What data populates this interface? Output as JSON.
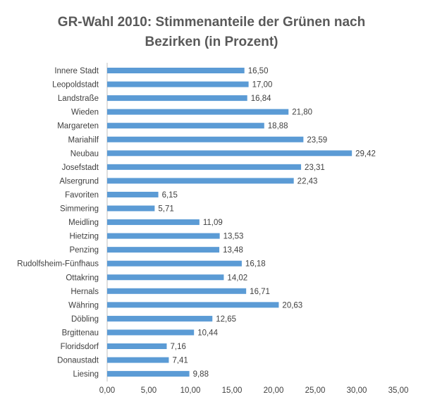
{
  "chart_data": {
    "type": "bar",
    "orientation": "horizontal",
    "title_line1": "GR-Wahl 2010: Stimmenanteile der Grünen nach",
    "title_line2": "Bezirken (in Prozent)",
    "categories": [
      "Innere Stadt",
      "Leopoldstadt",
      "Landstraße",
      "Wieden",
      "Margareten",
      "Mariahilf",
      "Neubau",
      "Josefstadt",
      "Alsergrund",
      "Favoriten",
      "Simmering",
      "Meidling",
      "Hietzing",
      "Penzing",
      "Rudolfsheim-Fünfhaus",
      "Ottakring",
      "Hernals",
      "Währing",
      "Döbling",
      "Brgittenau",
      "Floridsdorf",
      "Donaustadt",
      "Liesing"
    ],
    "values": [
      16.5,
      17.0,
      16.84,
      21.8,
      18.88,
      23.59,
      29.42,
      23.31,
      22.43,
      6.15,
      5.71,
      11.09,
      13.53,
      13.48,
      16.18,
      14.02,
      16.71,
      20.63,
      12.65,
      10.44,
      7.16,
      7.41,
      9.88
    ],
    "value_labels": [
      "16,50",
      "17,00",
      "16,84",
      "21,80",
      "18,88",
      "23,59",
      "29,42",
      "23,31",
      "22,43",
      "6,15",
      "5,71",
      "11,09",
      "13,53",
      "13,48",
      "16,18",
      "14,02",
      "16,71",
      "20,63",
      "12,65",
      "10,44",
      "7,16",
      "7,41",
      "9,88"
    ],
    "xlim": [
      0,
      35
    ],
    "ticks": [
      0,
      5,
      10,
      15,
      20,
      25,
      30,
      35
    ],
    "tick_labels": [
      "0,00",
      "5,00",
      "10,00",
      "15,00",
      "20,00",
      "25,00",
      "30,00",
      "35,00"
    ],
    "bar_color": "#5B9BD5",
    "grid": false,
    "legend": "none"
  }
}
